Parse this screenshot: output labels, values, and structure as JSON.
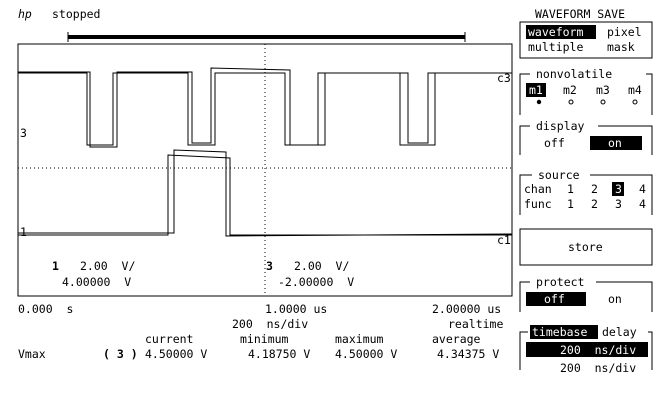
{
  "header": {
    "logo": "hp",
    "status": "stopped",
    "menu_title": "WAVEFORM SAVE"
  },
  "screen": {
    "marker3": "3",
    "marker1": "1",
    "trace3_label": "c3",
    "trace1_label": "c1",
    "ch1": {
      "number": "1",
      "scale": "2.00  V/",
      "offset": "4.00000  V"
    },
    "ch3": {
      "number": "3",
      "scale": "2.00  V/",
      "offset": "-2.00000  V"
    }
  },
  "timebase": {
    "start": "0.000  s",
    "center": "1.0000 us",
    "end": "2.00000 us",
    "scale": "200  ns/div",
    "mode": "realtime"
  },
  "measurements": {
    "headers": [
      "current",
      "minimum",
      "maximum",
      "average"
    ],
    "label": "Vmax",
    "source": "( 3 )",
    "values": [
      "4.50000 V",
      "4.18750 V",
      "4.50000 V",
      "4.34375 V"
    ]
  },
  "softkeys": [
    {
      "options": [
        "waveform",
        "pixel",
        "multiple",
        "mask"
      ]
    },
    {
      "title": "nonvolatile",
      "options": [
        "m1",
        "m2",
        "m3",
        "m4"
      ]
    },
    {
      "title": "display",
      "options": [
        "off",
        "on"
      ]
    },
    {
      "title": "source",
      "rows": [
        [
          "chan",
          "1",
          "2",
          "3",
          "4"
        ],
        [
          "func",
          "1",
          "2",
          "3",
          "4"
        ]
      ]
    },
    {
      "label": "store"
    },
    {
      "title": "protect",
      "options": [
        "off",
        "on"
      ]
    },
    {
      "options": [
        "timebase",
        "delay"
      ],
      "values": [
        "200  ns/div",
        "200  ns/div"
      ]
    }
  ]
}
